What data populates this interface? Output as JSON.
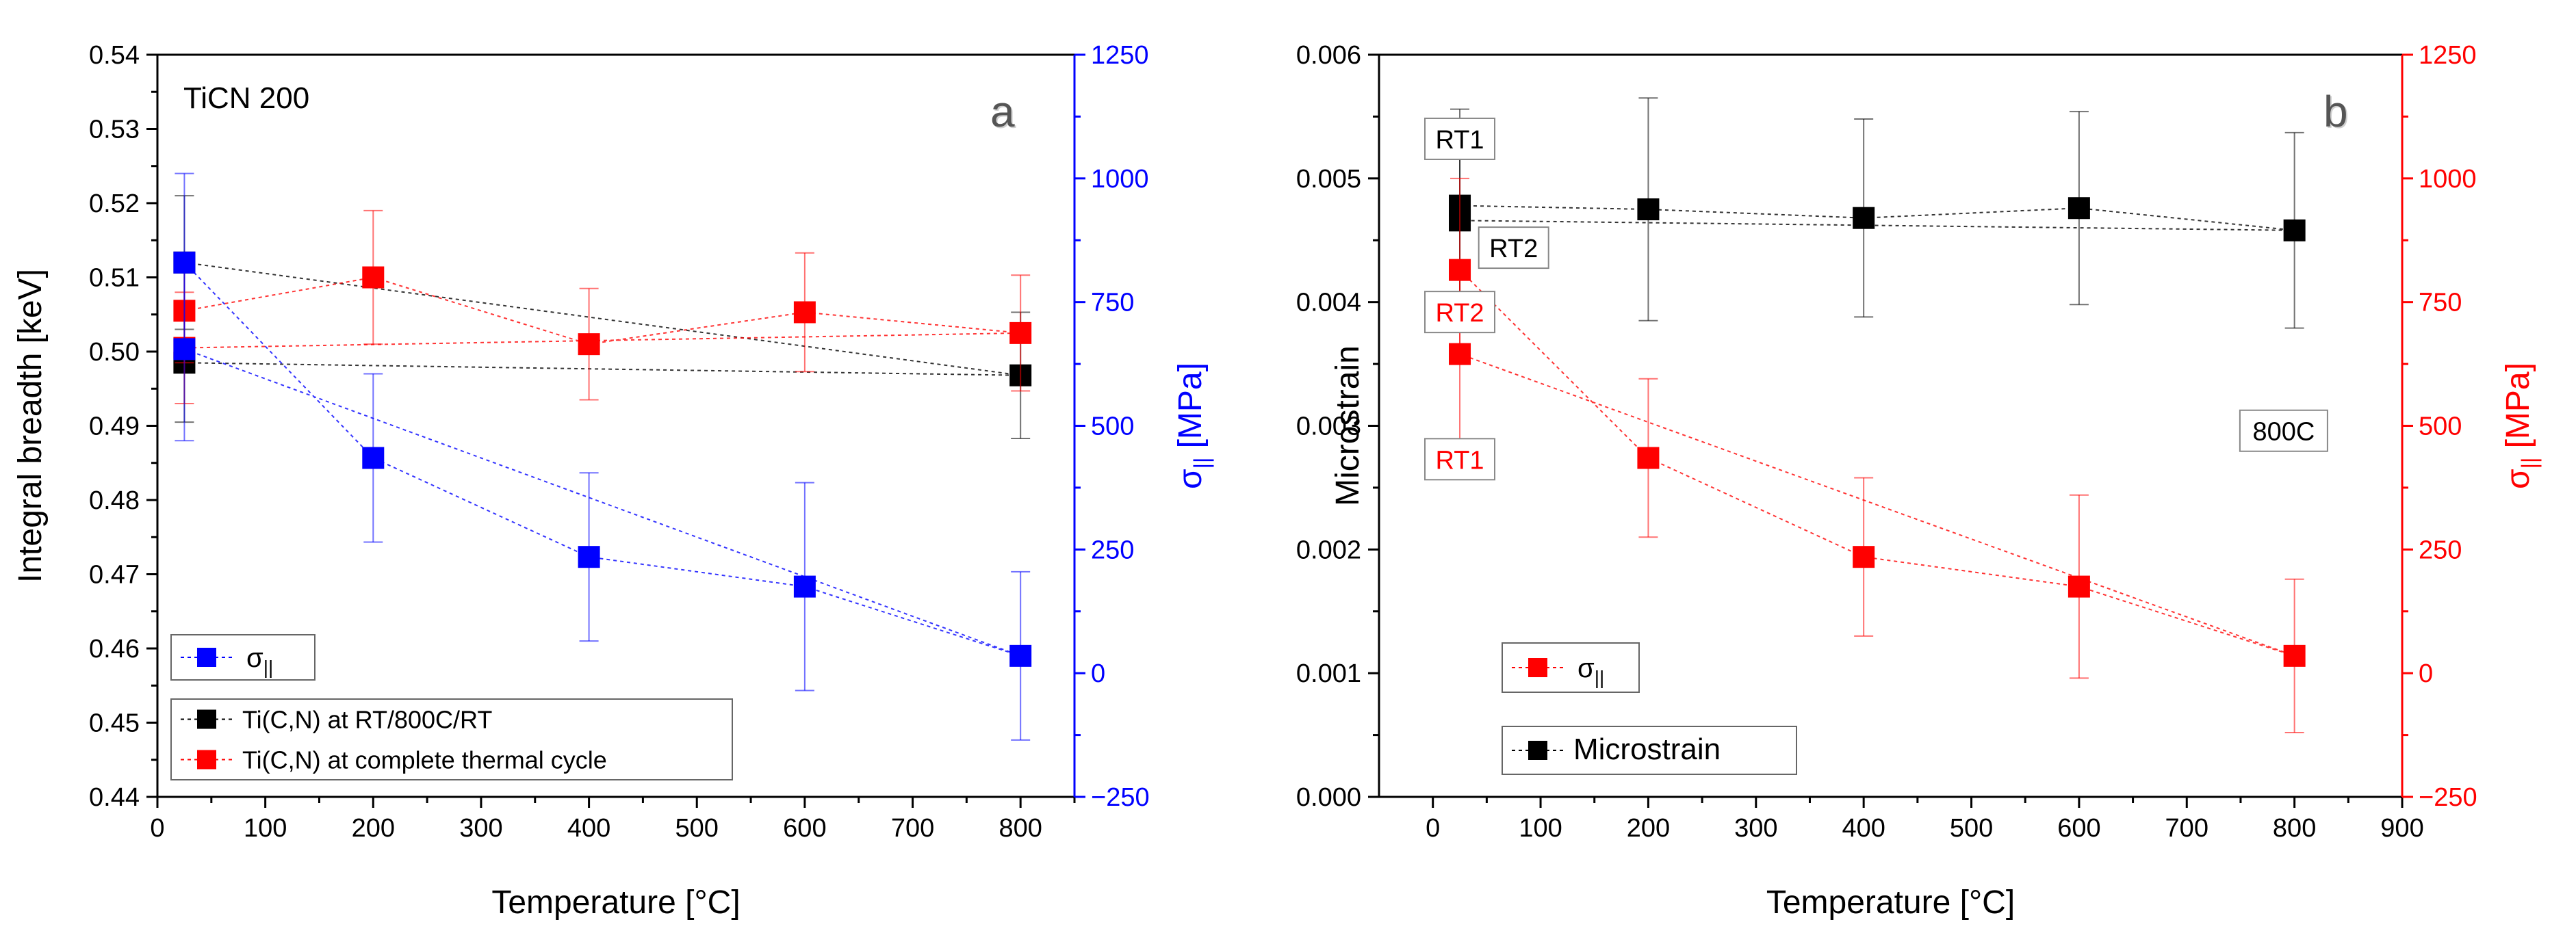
{
  "chart_data": [
    {
      "type": "scatter",
      "panel_label": "a",
      "inset_title": "TiCN 200",
      "xlabel": "Temperature [°C]",
      "ylabel": "Integral breadth [keV]",
      "y2label": "σ|| [MPa]",
      "y2label_base": "σ",
      "y2label_sub": "||",
      "y2label_unit": " [MPa]",
      "xlim": [
        0,
        850
      ],
      "ylim": [
        0.44,
        0.54
      ],
      "y2lim": [
        -250,
        1250
      ],
      "x_ticks": [
        0,
        100,
        200,
        300,
        400,
        500,
        600,
        700,
        800
      ],
      "y_ticks": [
        0.44,
        0.45,
        0.46,
        0.47,
        0.48,
        0.49,
        0.5,
        0.51,
        0.52,
        0.53,
        0.54
      ],
      "y_tick_labels": [
        "0.44",
        "0.45",
        "0.46",
        "0.47",
        "0.48",
        "0.49",
        "0.50",
        "0.51",
        "0.52",
        "0.53",
        "0.54"
      ],
      "y2_ticks": [
        -250,
        0,
        250,
        500,
        750,
        1000,
        1250
      ],
      "y2_tick_labels": [
        "−250",
        "0",
        "250",
        "500",
        "750",
        "1000",
        "1250"
      ],
      "series": [
        {
          "name": "Ti(C,N) at RT/800C/RT",
          "color": "#000000",
          "axis": "left",
          "x": [
            25,
            800,
            25
          ],
          "y": [
            0.512,
            0.4968,
            0.4985
          ],
          "err": [
            0.009,
            0.0085,
            0.008
          ]
        },
        {
          "name": "Ti(C,N) at complete thermal cycle",
          "color": "#ff0000",
          "axis": "left",
          "x": [
            25,
            200,
            400,
            600,
            800,
            25
          ],
          "y": [
            0.5055,
            0.51,
            0.501,
            0.5053,
            0.5025,
            0.5005
          ],
          "err": [
            0.007,
            0.009,
            0.0075,
            0.008,
            0.0078,
            0.0075
          ]
        },
        {
          "name": "σ||",
          "color": "#0000ff",
          "axis": "right",
          "x": [
            25,
            200,
            400,
            600,
            800,
            25
          ],
          "y": [
            830,
            435,
            235,
            175,
            35,
            655
          ],
          "err": [
            180,
            170,
            170,
            210,
            170,
            185
          ]
        }
      ],
      "legend_sigma": {
        "label_base": "σ",
        "label_sub": "||"
      },
      "legend_main": [
        "Ti(C,N) at RT/800C/RT",
        "Ti(C,N) at complete thermal cycle"
      ]
    },
    {
      "type": "scatter",
      "panel_label": "b",
      "xlabel": "Temperature [°C]",
      "ylabel": "Microstrain",
      "y2label": "σ|| [MPa]",
      "y2label_base": "σ",
      "y2label_sub": "||",
      "y2label_unit": " [MPa]",
      "xlim": [
        -50,
        900
      ],
      "ylim": [
        0.0,
        0.006
      ],
      "y2lim": [
        -250,
        1250
      ],
      "x_ticks": [
        0,
        100,
        200,
        300,
        400,
        500,
        600,
        700,
        800,
        900
      ],
      "y_ticks": [
        0.0,
        0.001,
        0.002,
        0.003,
        0.004,
        0.005,
        0.006
      ],
      "y_tick_labels": [
        "0.000",
        "0.001",
        "0.002",
        "0.003",
        "0.004",
        "0.005",
        "0.006"
      ],
      "y2_ticks": [
        -250,
        0,
        250,
        500,
        750,
        1000,
        1250
      ],
      "y2_tick_labels": [
        "−250",
        "0",
        "250",
        "500",
        "750",
        "1000",
        "1250"
      ],
      "series": [
        {
          "name": "Microstrain",
          "color": "#000000",
          "axis": "left",
          "x": [
            25,
            200,
            400,
            600,
            800,
            25
          ],
          "y": [
            0.00478,
            0.00475,
            0.00468,
            0.00476,
            0.00458,
            0.00466
          ],
          "err": [
            0.00078,
            0.0009,
            0.0008,
            0.00078,
            0.00079,
            0.00078
          ]
        },
        {
          "name": "σ||",
          "color": "#ff0000",
          "axis": "right",
          "x": [
            25,
            200,
            400,
            600,
            800,
            25
          ],
          "y": [
            815,
            435,
            235,
            175,
            35,
            645
          ],
          "err": [
            185,
            160,
            160,
            185,
            155,
            185
          ]
        }
      ],
      "annotations": [
        {
          "text": "RT1",
          "color": "#000000",
          "boxed": true,
          "x": 25,
          "y": 0.00532,
          "axis": "left"
        },
        {
          "text": "RT2",
          "color": "#000000",
          "boxed": true,
          "x": 75,
          "y": 0.00444,
          "axis": "left"
        },
        {
          "text": "RT2",
          "color": "#ff0000",
          "boxed": true,
          "x": 25,
          "y": 0.00392,
          "axis": "left"
        },
        {
          "text": "RT1",
          "color": "#ff0000",
          "boxed": true,
          "x": 25,
          "y": 0.00273,
          "axis": "left"
        },
        {
          "text": "800C",
          "color": "#000000",
          "boxed": true,
          "x": 790,
          "y": 0.00296,
          "axis": "left"
        }
      ],
      "legend_sigma": {
        "label_base": "σ",
        "label_sub": "||"
      },
      "legend_main": [
        "Microstrain"
      ]
    }
  ]
}
